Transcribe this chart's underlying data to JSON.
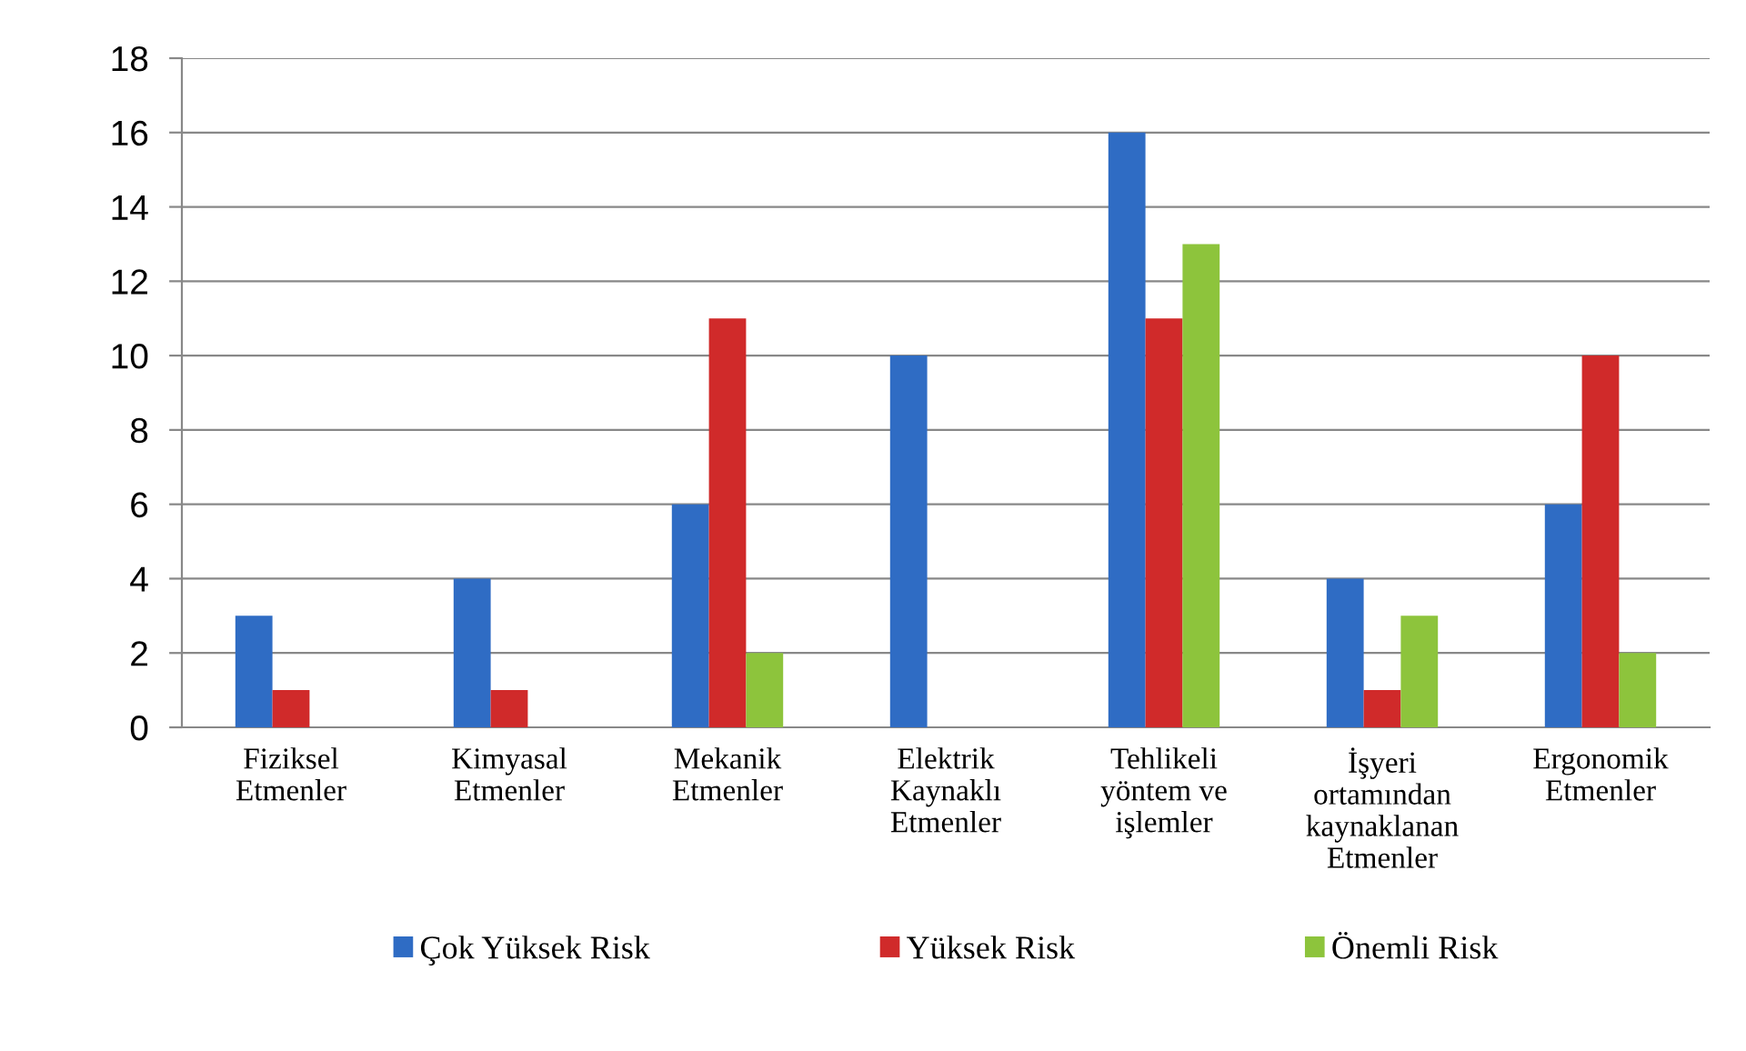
{
  "chart_data": {
    "type": "bar",
    "categories": [
      "Fiziksel\nEtmenler",
      "Kimyasal\nEtmenler",
      "Mekanik\nEtmenler",
      "Elektrik\nKaynaklı\nEtmenler",
      "Tehlikeli\nyöntem ve\nişlemler",
      "İşyeri\nortamından\nkaynaklanan\nEtmenler",
      "Ergonomik\nEtmenler"
    ],
    "series": [
      {
        "name": "Çok Yüksek Risk",
        "color": "#2f6cc4",
        "values": [
          3,
          4,
          6,
          10,
          16,
          4,
          6
        ]
      },
      {
        "name": "Yüksek Risk",
        "color": "#d02a2a",
        "values": [
          1,
          1,
          11,
          0,
          11,
          1,
          10
        ]
      },
      {
        "name": "Önemli Risk",
        "color": "#8dc43c",
        "values": [
          0,
          0,
          2,
          0,
          13,
          3,
          2
        ]
      }
    ],
    "ylim": [
      0,
      18
    ],
    "yticks": [
      0,
      2,
      4,
      6,
      8,
      10,
      12,
      14,
      16,
      18
    ],
    "grid": "y",
    "legend": "bottom"
  }
}
